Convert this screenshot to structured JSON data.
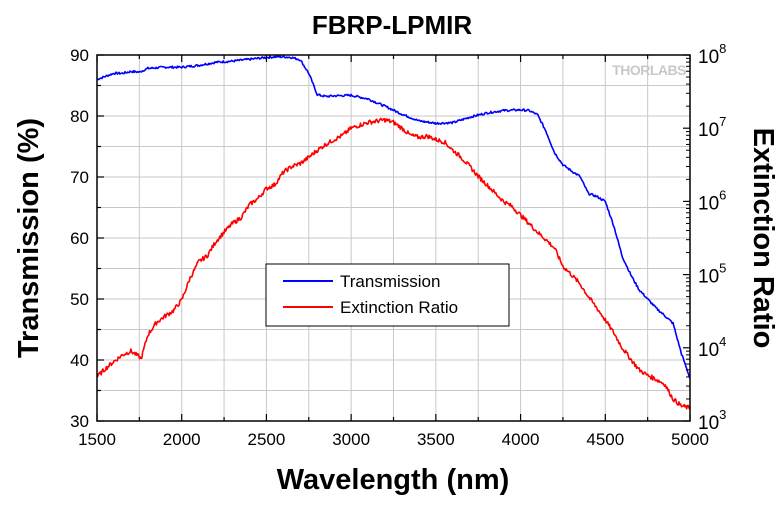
{
  "chart_data": {
    "type": "line",
    "title": "FBRP-LPMIR",
    "xlabel": "Wavelength (nm)",
    "ylabel_left": "Transmission (%)",
    "ylabel_right": "Extinction Ratio",
    "xlim": [
      1500,
      5000
    ],
    "ylim_left": [
      30,
      90
    ],
    "ylim_right": [
      1000,
      100000000
    ],
    "right_axis_scale": "log",
    "grid": true,
    "legend_position": "center-right",
    "watermark": "THORLABS",
    "x_ticks": [
      "1500",
      "2000",
      "2500",
      "3000",
      "3500",
      "4000",
      "4500",
      "5000"
    ],
    "y_left_ticks": [
      "30",
      "40",
      "50",
      "60",
      "70",
      "80",
      "90"
    ],
    "y_right_ticks": [
      {
        "base": "10",
        "exp": "3"
      },
      {
        "base": "10",
        "exp": "4"
      },
      {
        "base": "10",
        "exp": "5"
      },
      {
        "base": "10",
        "exp": "6"
      },
      {
        "base": "10",
        "exp": "7"
      },
      {
        "base": "10",
        "exp": "8"
      }
    ],
    "series": [
      {
        "name": "Transmission",
        "axis": "left",
        "color": "#0000ff",
        "x": [
          1500,
          1550,
          1600,
          1650,
          1700,
          1750,
          1800,
          1900,
          2000,
          2100,
          2200,
          2300,
          2400,
          2500,
          2550,
          2600,
          2650,
          2700,
          2750,
          2800,
          2850,
          2900,
          3000,
          3100,
          3200,
          3300,
          3400,
          3500,
          3600,
          3700,
          3800,
          3900,
          4000,
          4050,
          4100,
          4150,
          4200,
          4250,
          4300,
          4350,
          4400,
          4450,
          4500,
          4550,
          4600,
          4650,
          4700,
          4750,
          4800,
          4850,
          4900,
          4950,
          5000
        ],
        "values": [
          86,
          86.5,
          87,
          87,
          87.3,
          87.2,
          87.8,
          88,
          88,
          88.3,
          88.8,
          89,
          89.3,
          89.6,
          89.7,
          89.7,
          89.6,
          89.2,
          87,
          83.5,
          83.2,
          83.3,
          83.4,
          82.8,
          81.6,
          80.3,
          79.2,
          78.8,
          78.9,
          79.8,
          80.5,
          80.9,
          81,
          80.9,
          80.2,
          77.5,
          74,
          72,
          71,
          70.1,
          67.3,
          66.8,
          66,
          62,
          57,
          54,
          51.5,
          50,
          48.5,
          47.3,
          46,
          41,
          37
        ]
      },
      {
        "name": "Extinction Ratio",
        "axis": "right",
        "color": "#ff0000",
        "x": [
          1500,
          1550,
          1600,
          1650,
          1700,
          1750,
          1760,
          1800,
          1850,
          1900,
          1950,
          2000,
          2050,
          2100,
          2150,
          2200,
          2250,
          2300,
          2350,
          2400,
          2450,
          2500,
          2550,
          2600,
          2650,
          2700,
          2750,
          2800,
          2850,
          2900,
          2950,
          3000,
          3050,
          3100,
          3150,
          3200,
          3250,
          3300,
          3350,
          3400,
          3450,
          3500,
          3550,
          3600,
          3650,
          3700,
          3750,
          3800,
          3850,
          3900,
          3950,
          4000,
          4050,
          4100,
          4150,
          4200,
          4250,
          4300,
          4350,
          4400,
          4450,
          4500,
          4550,
          4600,
          4650,
          4700,
          4750,
          4800,
          4850,
          4900,
          4950,
          5000
        ],
        "values": [
          4000,
          5200,
          6500,
          8000,
          9000,
          7500,
          7000,
          15000,
          22000,
          27000,
          32000,
          45000,
          90000,
          150000,
          180000,
          280000,
          380000,
          500000,
          600000,
          900000,
          1100000,
          1500000,
          1700000,
          2500000,
          3000000,
          3300000,
          4000000,
          5000000,
          6000000,
          7000000,
          8000000,
          10000000,
          11000000,
          12000000,
          12500000,
          13000000,
          12000000,
          10000000,
          8000000,
          7500000,
          7800000,
          7000000,
          6500000,
          5000000,
          4000000,
          3000000,
          2200000,
          1700000,
          1300000,
          1000000,
          850000,
          650000,
          500000,
          380000,
          300000,
          230000,
          130000,
          100000,
          75000,
          50000,
          35000,
          24000,
          16000,
          10000,
          7000,
          5000,
          4200,
          3700,
          3200,
          2000,
          1600,
          1500
        ]
      }
    ]
  }
}
